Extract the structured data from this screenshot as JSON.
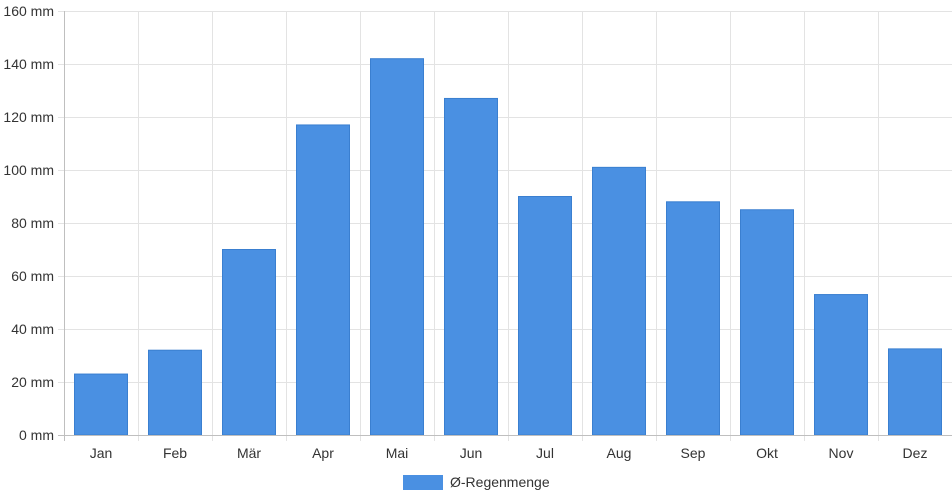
{
  "chart_data": {
    "type": "bar",
    "categories": [
      "Jan",
      "Feb",
      "Mär",
      "Apr",
      "Mai",
      "Jun",
      "Jul",
      "Aug",
      "Sep",
      "Okt",
      "Nov",
      "Dez"
    ],
    "series": [
      {
        "name": "Ø-Regenmenge",
        "color": "#4a90e2",
        "values": [
          23,
          32,
          70,
          117,
          142,
          127,
          90,
          101,
          88,
          85,
          53,
          32.5
        ]
      }
    ],
    "y_ticks": [
      "0 mm",
      "20 mm",
      "40 mm",
      "60 mm",
      "80 mm",
      "100 mm",
      "120 mm",
      "140 mm",
      "160 mm"
    ],
    "ylim": [
      0,
      160
    ],
    "y_unit": "mm",
    "grid": true,
    "legend_position": "bottom-center"
  }
}
